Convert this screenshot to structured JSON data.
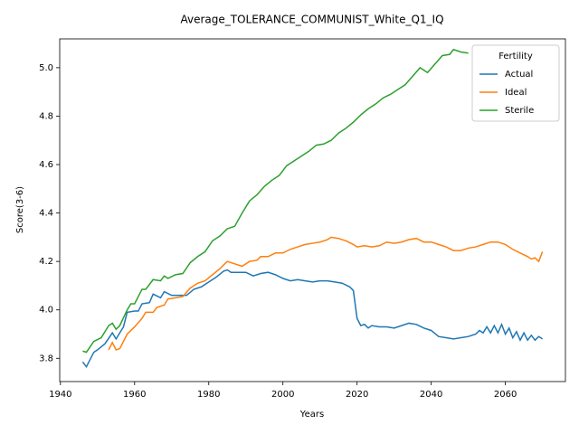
{
  "chart_data": {
    "type": "line",
    "title": "Average_TOLERANCE_COMMUNIST_White_Q1_IQ",
    "x_label": "Years",
    "y_label": "Score(3-6)",
    "legend_title": "Fertility",
    "legend": "upper right",
    "xlim": [
      1939.8,
      2076.2
    ],
    "ylim": [
      3.704,
      5.119
    ],
    "xticks": [
      1940,
      1960,
      1980,
      2000,
      2020,
      2040,
      2060
    ],
    "yticks": [
      3.8,
      {
        "value": 4,
        "label": "4.0"
      },
      4.2,
      4.4,
      4.6,
      4.8,
      {
        "value": 5,
        "label": "5.0"
      }
    ],
    "series": [
      {
        "name": "Actual",
        "color": "#1f77b4",
        "x": [
          1946,
          1947,
          1949,
          1950,
          1952,
          1954,
          1955,
          1957,
          1958,
          1960,
          1961,
          1962,
          1964,
          1965,
          1967,
          1968,
          1970,
          1972,
          1974,
          1976,
          1978,
          1980,
          1982,
          1984,
          1985,
          1986,
          1988,
          1990,
          1992,
          1994,
          1996,
          1998,
          2000,
          2002,
          2004,
          2006,
          2008,
          2010,
          2012,
          2014,
          2016,
          2018,
          2019,
          2020,
          2021,
          2022,
          2023,
          2024,
          2026,
          2028,
          2030,
          2032,
          2034,
          2036,
          2038,
          2040,
          2042,
          2044,
          2046,
          2048,
          2050,
          2052,
          2053,
          2054,
          2055,
          2056,
          2057,
          2058,
          2059,
          2060,
          2061,
          2062,
          2063,
          2064,
          2065,
          2066,
          2067,
          2068,
          2069,
          2070
        ],
        "values": [
          3.785,
          3.765,
          3.825,
          3.835,
          3.86,
          3.905,
          3.88,
          3.93,
          3.99,
          3.995,
          3.995,
          4.025,
          4.03,
          4.065,
          4.05,
          4.075,
          4.06,
          4.06,
          4.06,
          4.085,
          4.095,
          4.115,
          4.135,
          4.16,
          4.165,
          4.155,
          4.155,
          4.155,
          4.14,
          4.15,
          4.155,
          4.145,
          4.13,
          4.12,
          4.125,
          4.12,
          4.115,
          4.12,
          4.12,
          4.115,
          4.11,
          4.095,
          4.08,
          3.965,
          3.935,
          3.94,
          3.925,
          3.935,
          3.93,
          3.93,
          3.925,
          3.935,
          3.945,
          3.94,
          3.925,
          3.915,
          3.89,
          3.885,
          3.88,
          3.885,
          3.89,
          3.9,
          3.915,
          3.905,
          3.93,
          3.905,
          3.935,
          3.905,
          3.94,
          3.9,
          3.925,
          3.885,
          3.91,
          3.875,
          3.905,
          3.875,
          3.895,
          3.875,
          3.89,
          3.88
        ]
      },
      {
        "name": "Ideal",
        "color": "#ff7f0e",
        "x": [
          1953,
          1954,
          1955,
          1956,
          1958,
          1960,
          1962,
          1963,
          1965,
          1966,
          1968,
          1969,
          1971,
          1973,
          1975,
          1977,
          1979,
          1981,
          1983,
          1985,
          1987,
          1989,
          1991,
          1993,
          1994,
          1996,
          1998,
          2000,
          2002,
          2004,
          2006,
          2008,
          2010,
          2012,
          2013,
          2015,
          2017,
          2019,
          2020,
          2022,
          2024,
          2026,
          2028,
          2030,
          2032,
          2034,
          2036,
          2038,
          2040,
          2042,
          2044,
          2046,
          2048,
          2050,
          2052,
          2054,
          2056,
          2058,
          2060,
          2062,
          2064,
          2066,
          2067,
          2068,
          2069,
          2070
        ],
        "values": [
          3.835,
          3.865,
          3.835,
          3.84,
          3.9,
          3.93,
          3.965,
          3.99,
          3.99,
          4.01,
          4.02,
          4.045,
          4.05,
          4.055,
          4.09,
          4.11,
          4.12,
          4.145,
          4.17,
          4.2,
          4.19,
          4.18,
          4.2,
          4.205,
          4.22,
          4.22,
          4.235,
          4.235,
          4.25,
          4.26,
          4.27,
          4.275,
          4.28,
          4.29,
          4.3,
          4.295,
          4.285,
          4.27,
          4.26,
          4.265,
          4.26,
          4.265,
          4.28,
          4.275,
          4.28,
          4.29,
          4.295,
          4.28,
          4.28,
          4.27,
          4.26,
          4.245,
          4.245,
          4.255,
          4.26,
          4.27,
          4.28,
          4.28,
          4.27,
          4.25,
          4.235,
          4.22,
          4.21,
          4.215,
          4.2,
          4.24
        ]
      },
      {
        "name": "Sterile",
        "color": "#2ca02c",
        "x": [
          1946,
          1947,
          1949,
          1951,
          1953,
          1954,
          1955,
          1956,
          1958,
          1959,
          1960,
          1962,
          1963,
          1965,
          1967,
          1968,
          1969,
          1971,
          1973,
          1975,
          1977,
          1979,
          1981,
          1983,
          1985,
          1987,
          1989,
          1991,
          1993,
          1995,
          1997,
          1999,
          2001,
          2003,
          2005,
          2007,
          2009,
          2011,
          2013,
          2015,
          2017,
          2019,
          2021,
          2023,
          2025,
          2027,
          2029,
          2031,
          2033,
          2035,
          2037,
          2039,
          2041,
          2043,
          2045,
          2046,
          2048,
          2050
        ],
        "values": [
          3.83,
          3.825,
          3.87,
          3.885,
          3.935,
          3.945,
          3.92,
          3.935,
          4.0,
          4.025,
          4.025,
          4.085,
          4.085,
          4.125,
          4.12,
          4.14,
          4.13,
          4.145,
          4.15,
          4.195,
          4.22,
          4.24,
          4.285,
          4.305,
          4.335,
          4.345,
          4.4,
          4.45,
          4.475,
          4.51,
          4.535,
          4.555,
          4.595,
          4.615,
          4.635,
          4.655,
          4.68,
          4.685,
          4.7,
          4.73,
          4.75,
          4.775,
          4.805,
          4.83,
          4.85,
          4.875,
          4.89,
          4.91,
          4.93,
          4.965,
          5.0,
          4.98,
          5.015,
          5.05,
          5.055,
          5.075,
          5.065,
          5.06
        ]
      }
    ]
  }
}
